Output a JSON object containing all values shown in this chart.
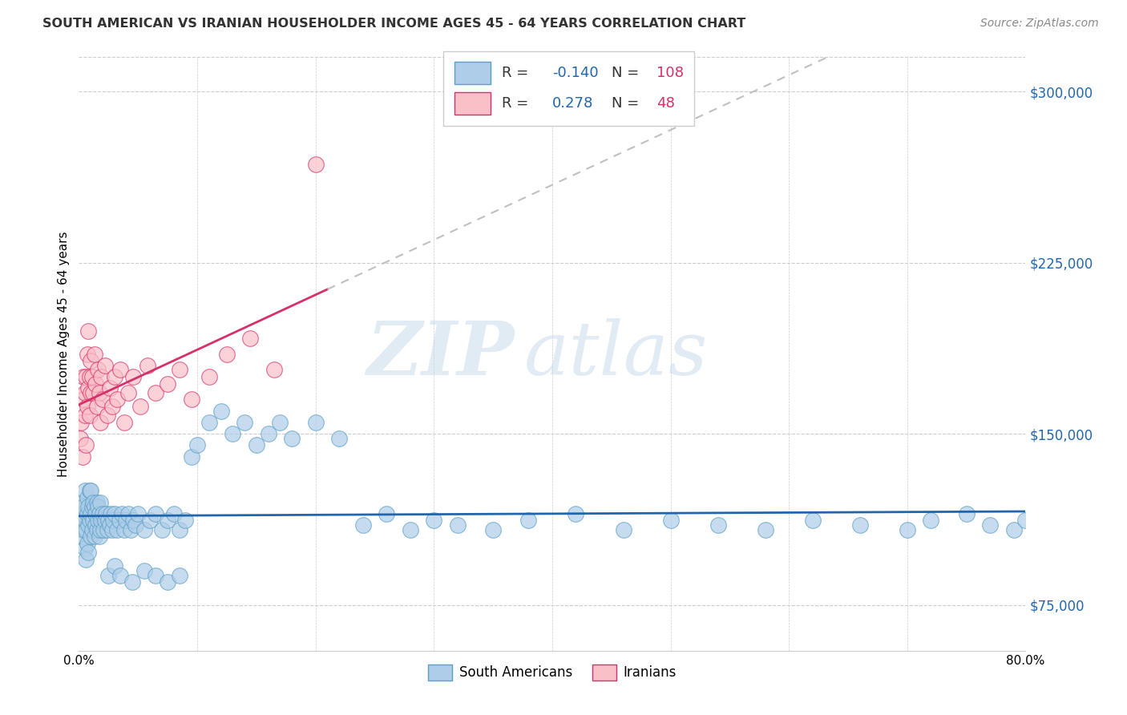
{
  "title": "SOUTH AMERICAN VS IRANIAN HOUSEHOLDER INCOME AGES 45 - 64 YEARS CORRELATION CHART",
  "source": "Source: ZipAtlas.com",
  "ylabel": "Householder Income Ages 45 - 64 years",
  "xlim": [
    0.0,
    0.8
  ],
  "ylim": [
    55000,
    315000
  ],
  "yticks": [
    75000,
    150000,
    225000,
    300000
  ],
  "ytick_labels": [
    "$75,000",
    "$150,000",
    "$225,000",
    "$300,000"
  ],
  "blue_color": "#6baed6",
  "pink_color": "#fcbcbc",
  "trendline_blue_color": "#2166ac",
  "trendline_pink_color": "#d63068",
  "trendline_dashed_color": "#c0c0c0",
  "watermark_zip": "ZIP",
  "watermark_atlas": "atlas",
  "blue_x": [
    0.001,
    0.002,
    0.003,
    0.003,
    0.004,
    0.004,
    0.005,
    0.005,
    0.005,
    0.006,
    0.006,
    0.007,
    0.007,
    0.007,
    0.008,
    0.008,
    0.008,
    0.009,
    0.009,
    0.01,
    0.01,
    0.01,
    0.011,
    0.011,
    0.012,
    0.012,
    0.013,
    0.013,
    0.014,
    0.014,
    0.015,
    0.015,
    0.016,
    0.016,
    0.017,
    0.017,
    0.018,
    0.018,
    0.019,
    0.02,
    0.021,
    0.022,
    0.023,
    0.024,
    0.025,
    0.026,
    0.027,
    0.028,
    0.029,
    0.03,
    0.032,
    0.034,
    0.036,
    0.038,
    0.04,
    0.042,
    0.044,
    0.046,
    0.048,
    0.05,
    0.055,
    0.06,
    0.065,
    0.07,
    0.075,
    0.08,
    0.085,
    0.09,
    0.095,
    0.1,
    0.11,
    0.12,
    0.13,
    0.14,
    0.15,
    0.16,
    0.17,
    0.18,
    0.2,
    0.22,
    0.24,
    0.26,
    0.28,
    0.3,
    0.32,
    0.35,
    0.38,
    0.42,
    0.46,
    0.5,
    0.54,
    0.58,
    0.62,
    0.66,
    0.7,
    0.72,
    0.75,
    0.77,
    0.79,
    0.8,
    0.025,
    0.03,
    0.035,
    0.045,
    0.055,
    0.065,
    0.075,
    0.085
  ],
  "blue_y": [
    110000,
    115000,
    105000,
    120000,
    108000,
    118000,
    100000,
    112000,
    125000,
    95000,
    108000,
    115000,
    102000,
    122000,
    110000,
    118000,
    98000,
    112000,
    125000,
    105000,
    115000,
    125000,
    108000,
    118000,
    112000,
    120000,
    105000,
    118000,
    110000,
    115000,
    108000,
    120000,
    112000,
    118000,
    105000,
    115000,
    108000,
    120000,
    112000,
    115000,
    108000,
    112000,
    115000,
    108000,
    112000,
    110000,
    115000,
    108000,
    112000,
    115000,
    108000,
    112000,
    115000,
    108000,
    112000,
    115000,
    108000,
    112000,
    110000,
    115000,
    108000,
    112000,
    115000,
    108000,
    112000,
    115000,
    108000,
    112000,
    140000,
    145000,
    155000,
    160000,
    150000,
    155000,
    145000,
    150000,
    155000,
    148000,
    155000,
    148000,
    110000,
    115000,
    108000,
    112000,
    110000,
    108000,
    112000,
    115000,
    108000,
    112000,
    110000,
    108000,
    112000,
    110000,
    108000,
    112000,
    115000,
    110000,
    108000,
    112000,
    88000,
    92000,
    88000,
    85000,
    90000,
    88000,
    85000,
    88000
  ],
  "pink_x": [
    0.001,
    0.002,
    0.003,
    0.004,
    0.004,
    0.005,
    0.005,
    0.006,
    0.006,
    0.007,
    0.007,
    0.008,
    0.008,
    0.009,
    0.009,
    0.01,
    0.01,
    0.011,
    0.012,
    0.013,
    0.014,
    0.015,
    0.016,
    0.017,
    0.018,
    0.019,
    0.02,
    0.022,
    0.024,
    0.026,
    0.028,
    0.03,
    0.032,
    0.035,
    0.038,
    0.042,
    0.046,
    0.052,
    0.058,
    0.065,
    0.075,
    0.085,
    0.095,
    0.11,
    0.125,
    0.145,
    0.165,
    0.2
  ],
  "pink_y": [
    148000,
    155000,
    140000,
    165000,
    175000,
    158000,
    168000,
    145000,
    175000,
    162000,
    185000,
    170000,
    195000,
    158000,
    175000,
    168000,
    182000,
    175000,
    168000,
    185000,
    172000,
    162000,
    178000,
    168000,
    155000,
    175000,
    165000,
    180000,
    158000,
    170000,
    162000,
    175000,
    165000,
    178000,
    155000,
    168000,
    175000,
    162000,
    180000,
    168000,
    172000,
    178000,
    165000,
    175000,
    185000,
    192000,
    178000,
    268000
  ]
}
